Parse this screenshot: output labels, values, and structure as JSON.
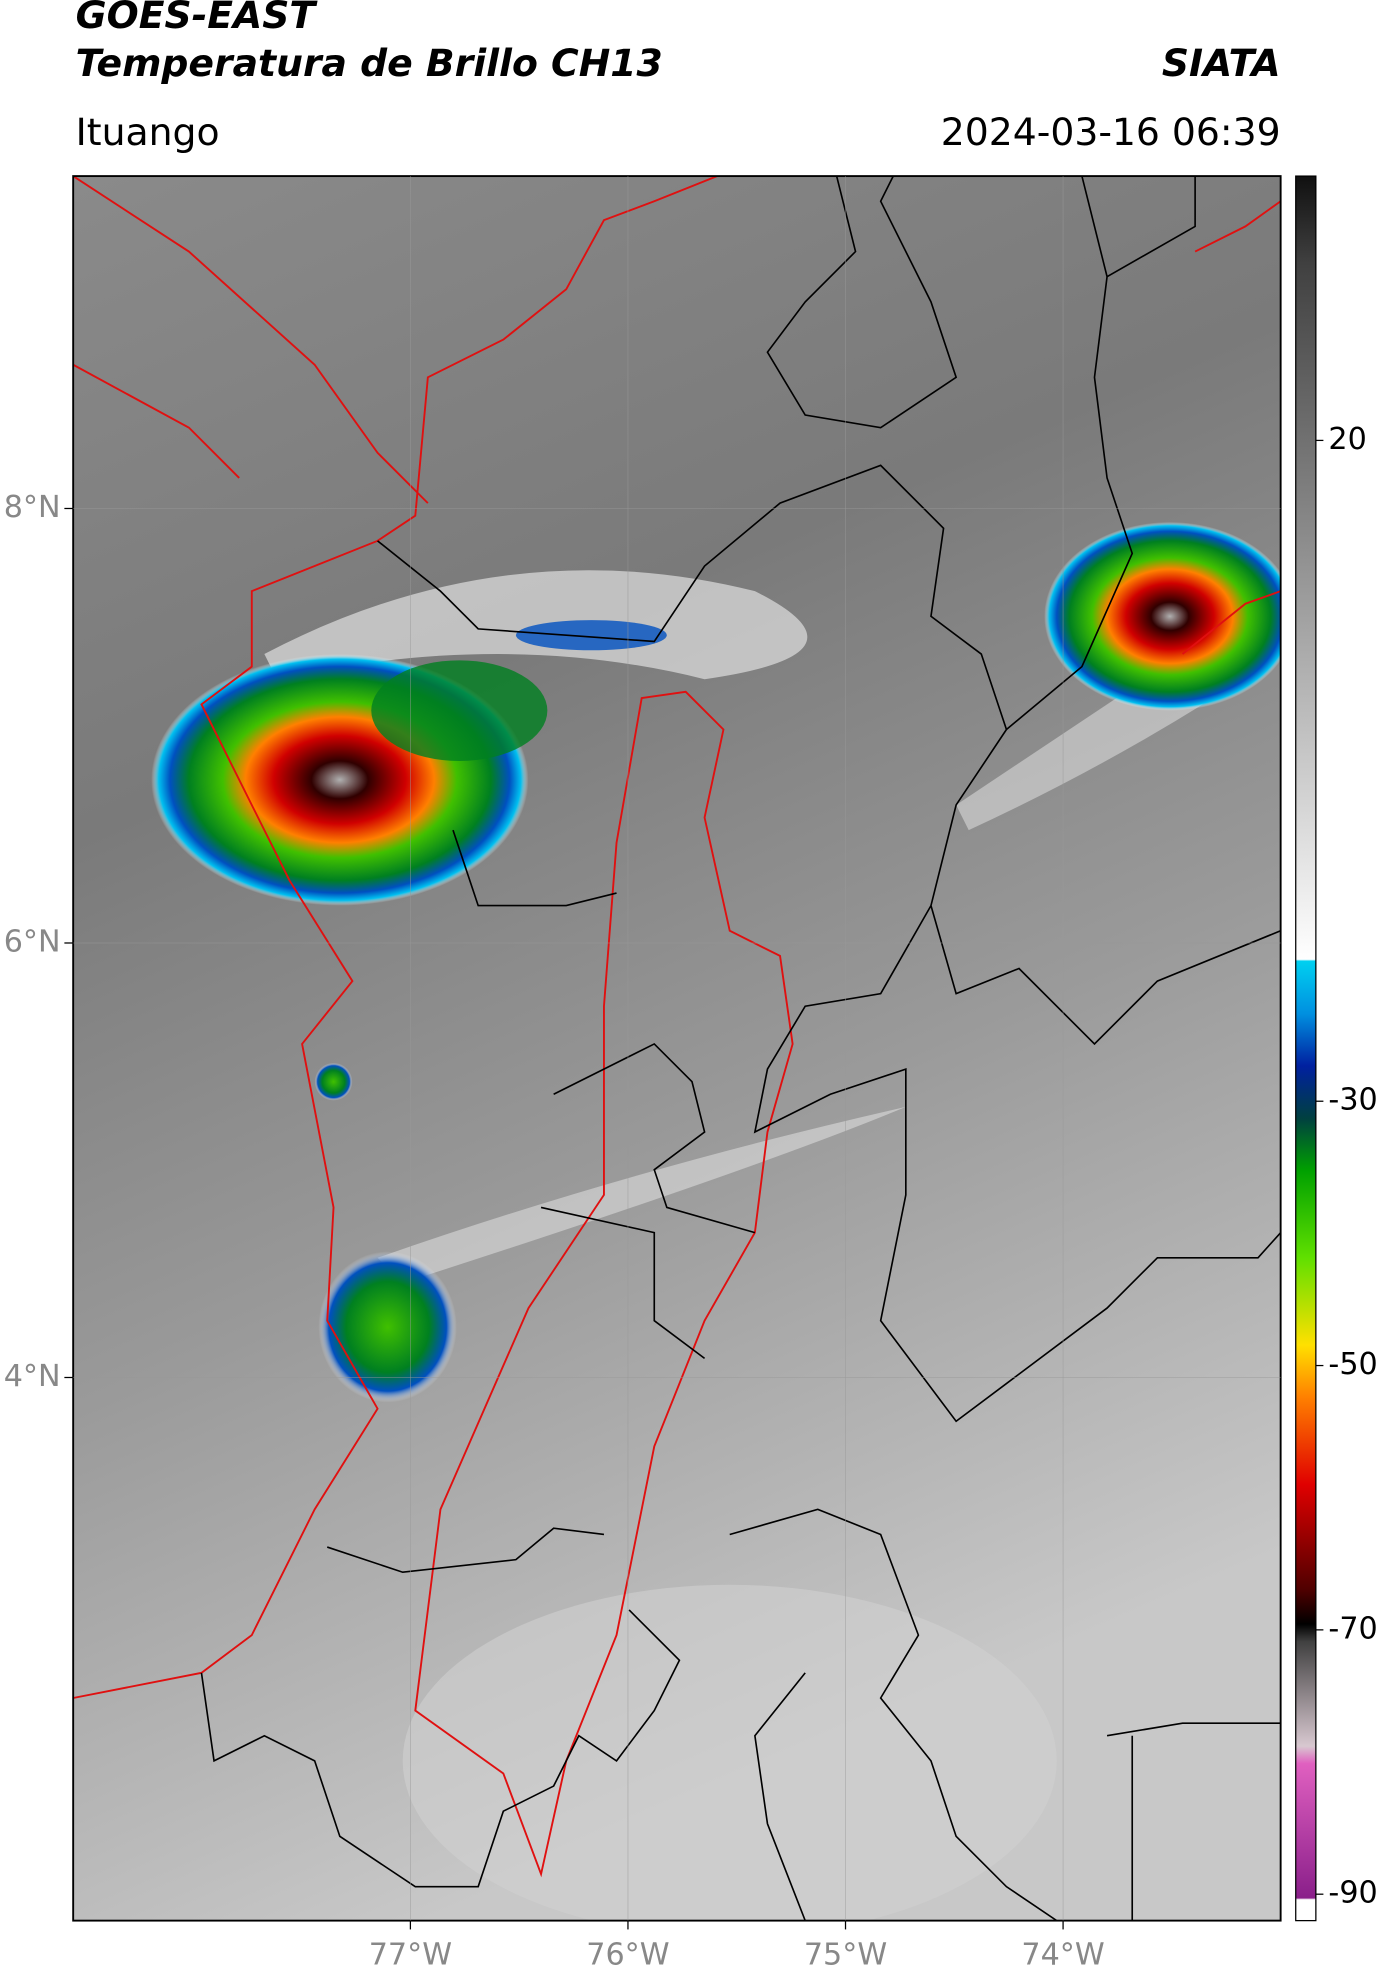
{
  "header": {
    "title": "GOES-EAST",
    "subtitle": "Temperatura de Brillo CH13",
    "agency": "SIATA",
    "location": "Ituango",
    "datetime": "2024-03-16 06:39"
  },
  "map": {
    "xlim": [
      -78.55,
      -73.0
    ],
    "ylim": [
      1.5,
      9.53
    ],
    "xticks": [
      {
        "value": -77,
        "label": "77°W"
      },
      {
        "value": -76,
        "label": "76°W"
      },
      {
        "value": -75,
        "label": "75°W"
      },
      {
        "value": -74,
        "label": "74°W"
      }
    ],
    "yticks": [
      {
        "value": 4,
        "label": "4°N"
      },
      {
        "value": 6,
        "label": "6°N"
      },
      {
        "value": 8,
        "label": "8°N"
      }
    ],
    "grid": true
  },
  "colorbar": {
    "clim": [
      -92,
      40
    ],
    "ticks": [
      20,
      -30,
      -50,
      -70,
      -90
    ]
  }
}
